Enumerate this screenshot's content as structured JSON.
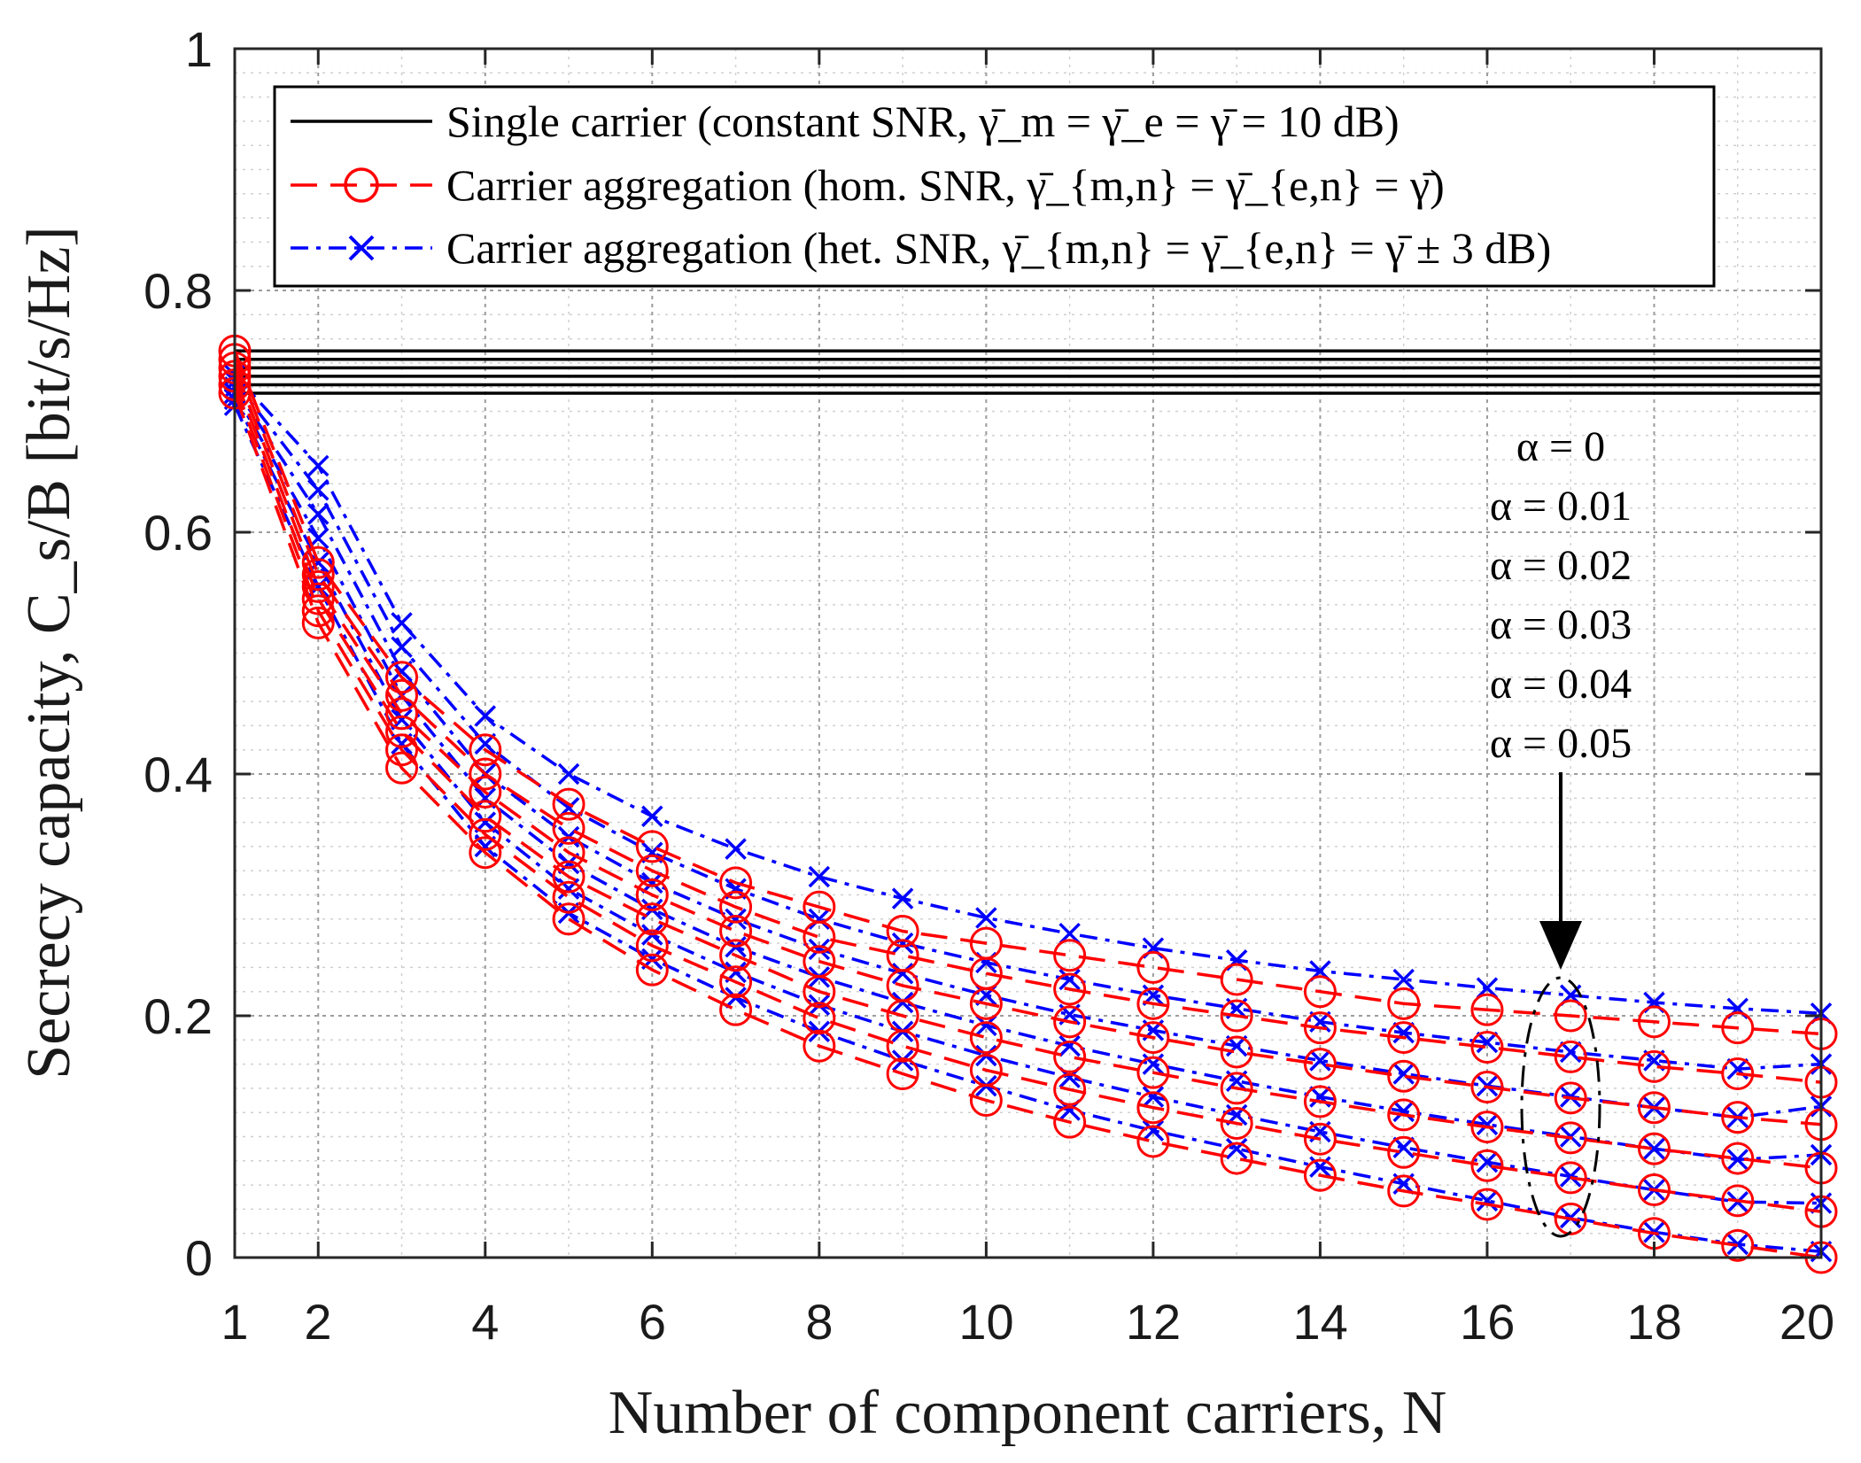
{
  "chart_data": {
    "type": "line",
    "title": "",
    "xlabel": "Number of component carriers, N",
    "ylabel": "Secrecy capacity, C_s/B [bit/s/Hz]",
    "xlim": [
      1,
      20
    ],
    "ylim": [
      0,
      1
    ],
    "xticks": [
      "1",
      "2",
      "4",
      "6",
      "8",
      "10",
      "12",
      "14",
      "16",
      "18",
      "20"
    ],
    "yticks": [
      "0",
      "0.2",
      "0.4",
      "0.6",
      "0.8",
      "1"
    ],
    "grid": true,
    "legend_position": "top",
    "x": [
      1,
      2,
      3,
      4,
      5,
      6,
      7,
      8,
      9,
      10,
      11,
      12,
      13,
      14,
      15,
      16,
      17,
      18,
      19,
      20
    ],
    "alpha_values": [
      "α = 0",
      "α = 0.01",
      "α = 0.02",
      "α = 0.03",
      "α = 0.04",
      "α = 0.05"
    ],
    "legend": [
      {
        "label": "Single carrier (constant SNR, γ̄_m = γ̄_e = γ̄ = 10 dB)",
        "color": "#000000",
        "style": "solid",
        "marker": "none"
      },
      {
        "label": "Carrier aggregation (hom. SNR, γ̄_{m,n} = γ̄_{e,n} = γ̄)",
        "color": "#ff0000",
        "style": "dashed",
        "marker": "circle"
      },
      {
        "label": "Carrier aggregation (het. SNR, γ̄_{m,n} = γ̄_{e,n} = γ̄ ± 3 dB)",
        "color": "#0000ff",
        "style": "dashdot",
        "marker": "x"
      }
    ],
    "series": [
      {
        "name": "Single carrier, α = 0",
        "group": "single",
        "values": [
          0.75,
          0.75,
          0.75,
          0.75,
          0.75,
          0.75,
          0.75,
          0.75,
          0.75,
          0.75,
          0.75,
          0.75,
          0.75,
          0.75,
          0.75,
          0.75,
          0.75,
          0.75,
          0.75,
          0.75
        ]
      },
      {
        "name": "Single carrier, α = 0.01",
        "group": "single",
        "values": [
          0.743,
          0.743,
          0.743,
          0.743,
          0.743,
          0.743,
          0.743,
          0.743,
          0.743,
          0.743,
          0.743,
          0.743,
          0.743,
          0.743,
          0.743,
          0.743,
          0.743,
          0.743,
          0.743,
          0.743
        ]
      },
      {
        "name": "Single carrier, α = 0.02",
        "group": "single",
        "values": [
          0.736,
          0.736,
          0.736,
          0.736,
          0.736,
          0.736,
          0.736,
          0.736,
          0.736,
          0.736,
          0.736,
          0.736,
          0.736,
          0.736,
          0.736,
          0.736,
          0.736,
          0.736,
          0.736,
          0.736
        ]
      },
      {
        "name": "Single carrier, α = 0.03",
        "group": "single",
        "values": [
          0.729,
          0.729,
          0.729,
          0.729,
          0.729,
          0.729,
          0.729,
          0.729,
          0.729,
          0.729,
          0.729,
          0.729,
          0.729,
          0.729,
          0.729,
          0.729,
          0.729,
          0.729,
          0.729,
          0.729
        ]
      },
      {
        "name": "Single carrier, α = 0.04",
        "group": "single",
        "values": [
          0.722,
          0.722,
          0.722,
          0.722,
          0.722,
          0.722,
          0.722,
          0.722,
          0.722,
          0.722,
          0.722,
          0.722,
          0.722,
          0.722,
          0.722,
          0.722,
          0.722,
          0.722,
          0.722,
          0.722
        ]
      },
      {
        "name": "Single carrier, α = 0.05",
        "group": "single",
        "values": [
          0.715,
          0.715,
          0.715,
          0.715,
          0.715,
          0.715,
          0.715,
          0.715,
          0.715,
          0.715,
          0.715,
          0.715,
          0.715,
          0.715,
          0.715,
          0.715,
          0.715,
          0.715,
          0.715,
          0.715
        ]
      },
      {
        "name": "Hom. SNR, α = 0",
        "group": "hom",
        "values": [
          0.75,
          0.575,
          0.48,
          0.42,
          0.375,
          0.34,
          0.31,
          0.29,
          0.27,
          0.26,
          0.25,
          0.24,
          0.23,
          0.22,
          0.21,
          0.205,
          0.2,
          0.195,
          0.19,
          0.185
        ]
      },
      {
        "name": "Hom. SNR, α = 0.01",
        "group": "hom",
        "values": [
          0.743,
          0.565,
          0.465,
          0.4,
          0.355,
          0.32,
          0.29,
          0.265,
          0.25,
          0.235,
          0.222,
          0.21,
          0.2,
          0.19,
          0.182,
          0.174,
          0.166,
          0.158,
          0.152,
          0.145
        ]
      },
      {
        "name": "Hom. SNR, α = 0.02",
        "group": "hom",
        "values": [
          0.736,
          0.555,
          0.45,
          0.385,
          0.335,
          0.3,
          0.27,
          0.245,
          0.225,
          0.21,
          0.195,
          0.182,
          0.17,
          0.16,
          0.15,
          0.141,
          0.132,
          0.124,
          0.116,
          0.11
        ]
      },
      {
        "name": "Hom. SNR, α = 0.03",
        "group": "hom",
        "values": [
          0.729,
          0.545,
          0.435,
          0.365,
          0.315,
          0.28,
          0.25,
          0.22,
          0.2,
          0.182,
          0.166,
          0.153,
          0.14,
          0.129,
          0.118,
          0.108,
          0.099,
          0.09,
          0.082,
          0.074
        ]
      },
      {
        "name": "Hom. SNR, α = 0.04",
        "group": "hom",
        "values": [
          0.722,
          0.535,
          0.42,
          0.35,
          0.298,
          0.258,
          0.228,
          0.198,
          0.175,
          0.155,
          0.139,
          0.124,
          0.111,
          0.098,
          0.087,
          0.076,
          0.066,
          0.056,
          0.047,
          0.038
        ]
      },
      {
        "name": "Hom. SNR, α = 0.05",
        "group": "hom",
        "values": [
          0.715,
          0.525,
          0.405,
          0.335,
          0.28,
          0.238,
          0.205,
          0.175,
          0.152,
          0.13,
          0.112,
          0.096,
          0.082,
          0.068,
          0.055,
          0.044,
          0.032,
          0.02,
          0.01,
          0.0
        ]
      },
      {
        "name": "Het. SNR, α = 0",
        "group": "het",
        "values": [
          0.73,
          0.655,
          0.525,
          0.448,
          0.4,
          0.365,
          0.338,
          0.315,
          0.297,
          0.281,
          0.268,
          0.256,
          0.246,
          0.237,
          0.23,
          0.223,
          0.217,
          0.211,
          0.206,
          0.202
        ]
      },
      {
        "name": "Het. SNR, α = 0.01",
        "group": "het",
        "values": [
          0.725,
          0.635,
          0.505,
          0.425,
          0.372,
          0.335,
          0.305,
          0.28,
          0.26,
          0.244,
          0.23,
          0.217,
          0.206,
          0.195,
          0.186,
          0.178,
          0.17,
          0.163,
          0.156,
          0.16
        ]
      },
      {
        "name": "Het. SNR, α = 0.02",
        "group": "het",
        "values": [
          0.72,
          0.615,
          0.485,
          0.4,
          0.348,
          0.31,
          0.28,
          0.255,
          0.235,
          0.217,
          0.201,
          0.188,
          0.175,
          0.163,
          0.152,
          0.142,
          0.133,
          0.124,
          0.116,
          0.125
        ]
      },
      {
        "name": "Het. SNR, α = 0.03",
        "group": "het",
        "values": [
          0.715,
          0.595,
          0.465,
          0.38,
          0.326,
          0.288,
          0.257,
          0.232,
          0.211,
          0.192,
          0.175,
          0.16,
          0.146,
          0.133,
          0.121,
          0.11,
          0.1,
          0.09,
          0.081,
          0.085
        ]
      },
      {
        "name": "Het. SNR, α = 0.04",
        "group": "het",
        "values": [
          0.71,
          0.575,
          0.445,
          0.36,
          0.305,
          0.267,
          0.236,
          0.209,
          0.187,
          0.167,
          0.149,
          0.133,
          0.118,
          0.104,
          0.091,
          0.079,
          0.067,
          0.056,
          0.046,
          0.045
        ]
      },
      {
        "name": "Het. SNR, α = 0.05",
        "group": "het",
        "values": [
          0.705,
          0.555,
          0.425,
          0.34,
          0.285,
          0.247,
          0.215,
          0.187,
          0.163,
          0.142,
          0.122,
          0.105,
          0.09,
          0.075,
          0.061,
          0.047,
          0.033,
          0.021,
          0.011,
          0.005
        ]
      }
    ]
  }
}
